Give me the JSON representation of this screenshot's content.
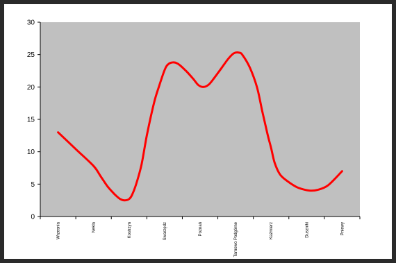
{
  "chart_data": {
    "type": "line",
    "title": "",
    "xlabel": "",
    "ylabel": "",
    "ylim": [
      0,
      30
    ],
    "yticks": [
      0,
      5,
      10,
      15,
      20,
      25,
      30
    ],
    "grid": false,
    "legend": "none",
    "categories": [
      "Wrzesnia",
      "Nekla",
      "Kostrzyn",
      "Swarzędz",
      "Poznań",
      "Tarnowo Podgórne",
      "Kaźmierz",
      "Duszniki",
      "Pniewy"
    ],
    "series": [
      {
        "color": "#ff0000",
        "x": [
          0,
          0.5,
          1,
          1.2,
          1.4,
          1.6,
          1.75,
          1.88,
          2,
          2.08,
          2.2,
          2.35,
          2.5,
          2.7,
          2.85,
          3,
          3.1,
          3.25,
          3.4,
          3.6,
          3.8,
          3.95,
          4.1,
          4.25,
          4.4,
          4.6,
          4.8,
          4.95,
          5.1,
          5.2,
          5.4,
          5.6,
          5.75,
          5.9,
          6,
          6.1,
          6.25,
          6.45,
          6.7,
          6.9,
          7.1,
          7.3,
          7.6,
          8
        ],
        "y": [
          13,
          10.4,
          7.8,
          6.2,
          4.6,
          3.4,
          2.7,
          2.5,
          2.7,
          3.3,
          5,
          8,
          12.5,
          17.5,
          20.2,
          22.6,
          23.5,
          23.8,
          23.5,
          22.5,
          21.3,
          20.3,
          20.0,
          20.4,
          21.4,
          22.9,
          24.4,
          25.2,
          25.3,
          24.9,
          23.0,
          20.0,
          16.3,
          12.7,
          10.6,
          8.3,
          6.5,
          5.5,
          4.6,
          4.2,
          4.0,
          4.1,
          4.8,
          7.0
        ]
      }
    ]
  }
}
